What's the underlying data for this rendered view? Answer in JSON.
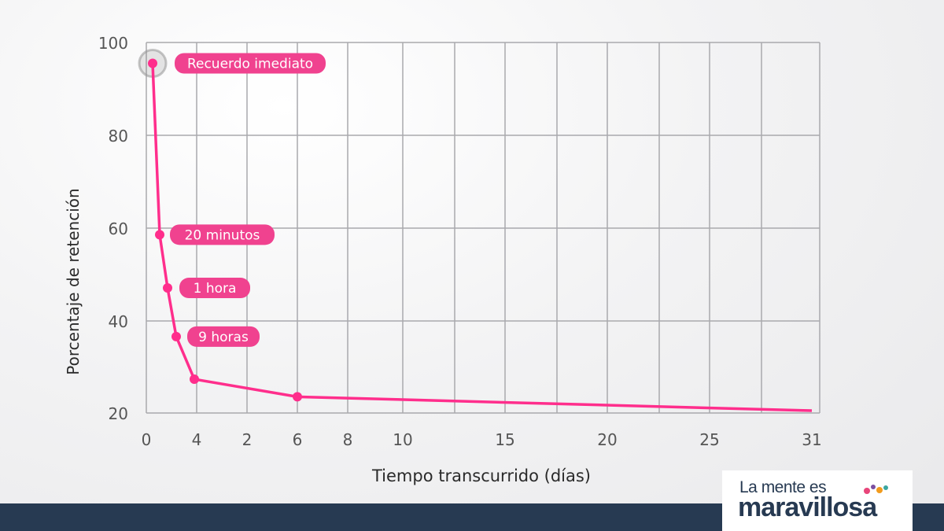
{
  "chart_data": {
    "type": "line",
    "ylabel": "Porcentaje de retención",
    "xlabel": "Tiempo transcurrido (días)",
    "y_ticks": [
      "100",
      "80",
      "60",
      "40",
      "20"
    ],
    "x_ticks": [
      "0",
      "4",
      "2",
      "6",
      "8",
      "10",
      "15",
      "20",
      "25",
      "31"
    ],
    "ylim": [
      20,
      100
    ],
    "grid": true,
    "line_color": "#ff2e8c",
    "label_color": "#f0428f",
    "points": [
      {
        "x": "0",
        "y": 95.5,
        "label": "Recuerdo imediato"
      },
      {
        "x": "20 minutos",
        "y": 58.5,
        "label": "20 minutos"
      },
      {
        "x": "1 hora",
        "y": 47,
        "label": "1 hora"
      },
      {
        "x": "9 horas",
        "y": 36.5,
        "label": "9 horas"
      },
      {
        "x": "4",
        "y": 27.3,
        "label": ""
      },
      {
        "x": "6",
        "y": 23.5,
        "label": ""
      },
      {
        "x": "31",
        "y": 20.5,
        "label": ""
      }
    ]
  },
  "brand": {
    "line1": "La mente es",
    "line2": "maravillosa",
    "accent_colors": [
      "#e8457a",
      "#7b4fa0",
      "#f29b1d",
      "#3aa6a0"
    ]
  }
}
